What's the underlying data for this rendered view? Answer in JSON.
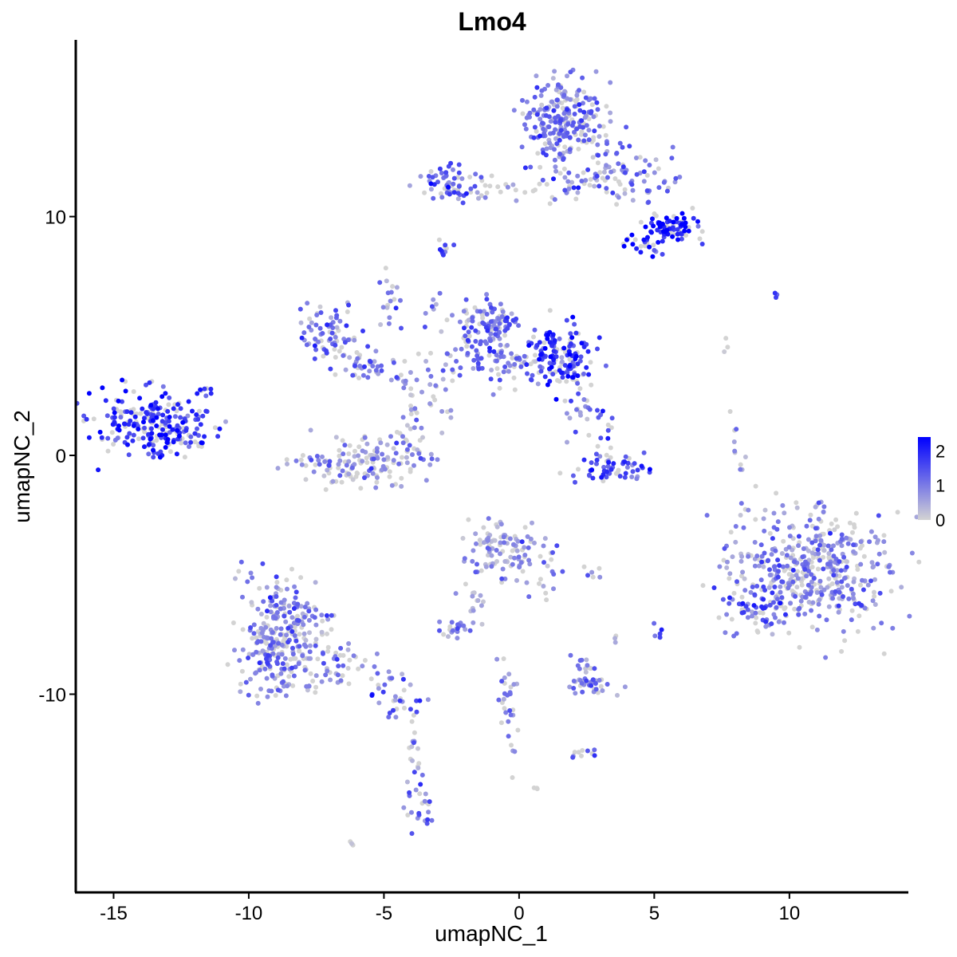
{
  "chart_data": {
    "type": "scatter",
    "title": "Lmo4",
    "xlabel": "umapNC_1",
    "ylabel": "umapNC_2",
    "xlim": [
      -16.4,
      14.4
    ],
    "ylim": [
      -18.3,
      17.4
    ],
    "xticks": [
      -15,
      -10,
      -5,
      0,
      5,
      10
    ],
    "yticks": [
      -10,
      0,
      10
    ],
    "grid": false,
    "legend": {
      "position": "right",
      "ticks": [
        2,
        1,
        0
      ],
      "range": [
        0,
        2.4
      ],
      "low_color": "#d3d3d3",
      "high_color": "#0000ff"
    },
    "clusters": [
      {
        "cx": -13.6,
        "cy": 1.2,
        "sx": 1.0,
        "sy": 0.75,
        "n": 220,
        "level": 1.9
      },
      {
        "cx": -12.2,
        "cy": 0.9,
        "sx": 0.4,
        "sy": 0.6,
        "n": 25,
        "level": 1.6
      },
      {
        "cx": -11.6,
        "cy": 2.7,
        "sx": 0.15,
        "sy": 0.15,
        "n": 8,
        "level": 1.7
      },
      {
        "cx": -7.0,
        "cy": 5.2,
        "sx": 0.6,
        "sy": 0.6,
        "n": 70,
        "level": 1.1
      },
      {
        "cx": -5.6,
        "cy": 3.8,
        "sx": 0.7,
        "sy": 0.35,
        "n": 45,
        "level": 0.9
      },
      {
        "cx": -4.7,
        "cy": 6.4,
        "sx": 0.3,
        "sy": 0.8,
        "n": 18,
        "level": 0.8
      },
      {
        "cx": -6.0,
        "cy": -0.3,
        "sx": 1.2,
        "sy": 0.55,
        "n": 140,
        "level": 0.7
      },
      {
        "cx": -4.0,
        "cy": 0.8,
        "sx": 0.4,
        "sy": 0.9,
        "n": 35,
        "level": 0.7
      },
      {
        "cx": -3.4,
        "cy": 3.0,
        "sx": 0.5,
        "sy": 0.8,
        "n": 30,
        "level": 0.6
      },
      {
        "cx": -2.8,
        "cy": 8.7,
        "sx": 0.15,
        "sy": 0.2,
        "n": 10,
        "level": 1.9
      },
      {
        "cx": -1.2,
        "cy": 5.4,
        "sx": 0.6,
        "sy": 0.6,
        "n": 110,
        "level": 1.3
      },
      {
        "cx": -0.7,
        "cy": 3.8,
        "sx": 1.3,
        "sy": 0.5,
        "n": 90,
        "level": 1.0
      },
      {
        "cx": 1.6,
        "cy": 4.1,
        "sx": 0.65,
        "sy": 0.7,
        "n": 130,
        "level": 1.8
      },
      {
        "cx": 2.2,
        "cy": 1.5,
        "sx": 0.4,
        "sy": 0.9,
        "n": 18,
        "level": 1.0
      },
      {
        "cx": 3.5,
        "cy": -0.6,
        "sx": 0.7,
        "sy": 0.3,
        "n": 60,
        "level": 1.5
      },
      {
        "cx": 3.2,
        "cy": 0.9,
        "sx": 0.2,
        "sy": 0.6,
        "n": 15,
        "level": 1.4
      },
      {
        "cx": 1.7,
        "cy": 14.0,
        "sx": 0.75,
        "sy": 0.9,
        "n": 230,
        "level": 1.0
      },
      {
        "cx": 3.3,
        "cy": 11.7,
        "sx": 1.2,
        "sy": 0.55,
        "n": 110,
        "level": 1.0
      },
      {
        "cx": -2.6,
        "cy": 11.4,
        "sx": 0.5,
        "sy": 0.4,
        "n": 55,
        "level": 1.3
      },
      {
        "cx": -0.5,
        "cy": 11.1,
        "sx": 1.4,
        "sy": 0.25,
        "n": 30,
        "level": 0.5
      },
      {
        "cx": 5.6,
        "cy": 9.6,
        "sx": 0.5,
        "sy": 0.3,
        "n": 70,
        "level": 2.2
      },
      {
        "cx": 4.6,
        "cy": 8.9,
        "sx": 0.4,
        "sy": 0.25,
        "n": 25,
        "level": 2.1
      },
      {
        "cx": 9.6,
        "cy": 6.7,
        "sx": 0.1,
        "sy": 0.05,
        "n": 3,
        "level": 1.5
      },
      {
        "cx": 8.1,
        "cy": 0.6,
        "sx": 0.2,
        "sy": 0.6,
        "n": 10,
        "level": 0.4
      },
      {
        "cx": 10.8,
        "cy": -4.8,
        "sx": 1.5,
        "sy": 1.3,
        "n": 460,
        "level": 0.9
      },
      {
        "cx": 8.9,
        "cy": -6.5,
        "sx": 0.5,
        "sy": 0.5,
        "n": 60,
        "level": 1.2
      },
      {
        "cx": -0.6,
        "cy": -3.9,
        "sx": 0.7,
        "sy": 0.6,
        "n": 100,
        "level": 0.7
      },
      {
        "cx": 0.9,
        "cy": -4.9,
        "sx": 0.35,
        "sy": 0.6,
        "n": 20,
        "level": 0.8
      },
      {
        "cx": -1.7,
        "cy": -6.1,
        "sx": 0.25,
        "sy": 0.6,
        "n": 15,
        "level": 0.4
      },
      {
        "cx": -2.3,
        "cy": -7.3,
        "sx": 0.4,
        "sy": 0.2,
        "n": 20,
        "level": 0.9
      },
      {
        "cx": 2.8,
        "cy": -4.9,
        "sx": 0.2,
        "sy": 0.1,
        "n": 6,
        "level": 1.1
      },
      {
        "cx": -8.7,
        "cy": -7.4,
        "sx": 0.8,
        "sy": 1.2,
        "n": 250,
        "level": 0.9
      },
      {
        "cx": -9.4,
        "cy": -8.8,
        "sx": 0.5,
        "sy": 0.7,
        "n": 60,
        "level": 1.0
      },
      {
        "cx": -6.4,
        "cy": -9.1,
        "sx": 0.8,
        "sy": 0.45,
        "n": 45,
        "level": 0.8
      },
      {
        "cx": -4.6,
        "cy": -10.2,
        "sx": 0.5,
        "sy": 0.4,
        "n": 30,
        "level": 1.1
      },
      {
        "cx": -3.9,
        "cy": -12.8,
        "sx": 0.2,
        "sy": 1.2,
        "n": 25,
        "level": 0.8
      },
      {
        "cx": -3.6,
        "cy": -14.8,
        "sx": 0.2,
        "sy": 0.5,
        "n": 18,
        "level": 1.1
      },
      {
        "cx": 2.6,
        "cy": -9.6,
        "sx": 0.5,
        "sy": 0.2,
        "n": 35,
        "level": 0.9
      },
      {
        "cx": 2.3,
        "cy": -8.8,
        "sx": 0.3,
        "sy": 0.2,
        "n": 12,
        "level": 1.0
      },
      {
        "cx": -0.4,
        "cy": -10.5,
        "sx": 0.2,
        "sy": 1.0,
        "n": 30,
        "level": 0.8
      },
      {
        "cx": 2.4,
        "cy": -12.5,
        "sx": 0.2,
        "sy": 0.2,
        "n": 10,
        "level": 1.3
      },
      {
        "cx": 5.1,
        "cy": -7.5,
        "sx": 0.1,
        "sy": 0.3,
        "n": 5,
        "level": 1.0
      },
      {
        "cx": 3.6,
        "cy": -7.6,
        "sx": 0.1,
        "sy": 0.2,
        "n": 3,
        "level": 0.4
      },
      {
        "cx": 0.6,
        "cy": -14.0,
        "sx": 0.05,
        "sy": 0.05,
        "n": 3,
        "level": 0.6
      },
      {
        "cx": -6.1,
        "cy": -16.3,
        "sx": 0.1,
        "sy": 0.1,
        "n": 3,
        "level": 0.4
      },
      {
        "cx": 7.7,
        "cy": 4.6,
        "sx": 0.1,
        "sy": 0.3,
        "n": 3,
        "level": 0.1
      },
      {
        "cx": -10.9,
        "cy": 1.4,
        "sx": 0.05,
        "sy": 0.05,
        "n": 1,
        "level": 1.0
      },
      {
        "cx": -3.0,
        "cy": 6.0,
        "sx": 0.3,
        "sy": 0.5,
        "n": 8,
        "level": 0.5
      }
    ]
  }
}
